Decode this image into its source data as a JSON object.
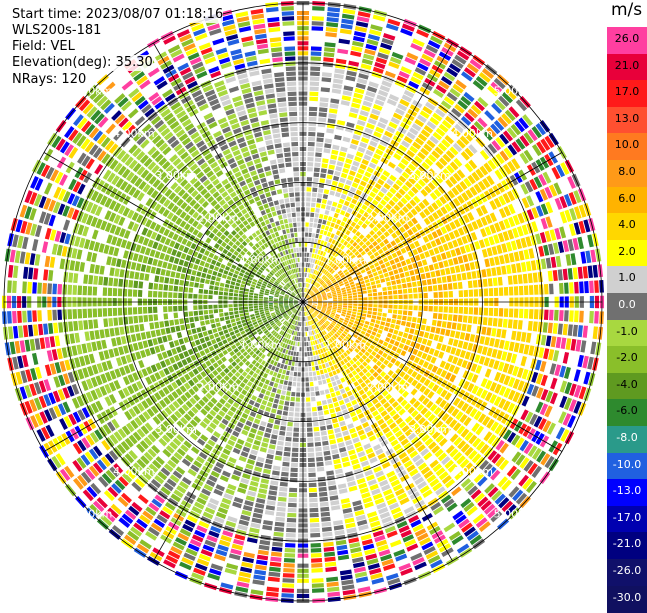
{
  "header": {
    "start_time": "Start time: 2023/08/07 01:18:16",
    "instrument": "WLS200s-181",
    "field": "Field: VEL",
    "elevation": "Elevation(deg): 35.30",
    "nrays": "NRays: 120"
  },
  "colorbar": {
    "unit": "m/s",
    "levels": [
      26.0,
      21.0,
      17.0,
      13.0,
      10.0,
      8.0,
      6.0,
      4.0,
      2.0,
      1.0,
      0.0,
      -1.0,
      -2.0,
      -4.0,
      -6.0,
      -8.0,
      -10.0,
      -13.0,
      -17.0,
      -21.0,
      -26.0,
      -30.0
    ],
    "labels": [
      "26.0",
      "21.0",
      "17.0",
      "13.0",
      "10.0",
      "8.0",
      "6.0",
      "4.0",
      "2.0",
      "1.0",
      "0.0",
      "-1.0",
      "-2.0",
      "-4.0",
      "-6.0",
      "-8.0",
      "-10.0",
      "-13.0",
      "-17.0",
      "-21.0",
      "-26.0",
      "-30.0"
    ],
    "colors": [
      "#ff3fa0",
      "#e8003a",
      "#ff1a1a",
      "#ff5030",
      "#ff7a20",
      "#ff9a18",
      "#ffb300",
      "#ffd700",
      "#ffff00",
      "#d0d0d0",
      "#707070",
      "#a8d840",
      "#8abf2a",
      "#5f9a20",
      "#2e8a2e",
      "#2a9a8a",
      "#2060e0",
      "#0000ff",
      "#0000b0",
      "#000080",
      "#10106a",
      "#101060"
    ]
  },
  "chart_data": {
    "type": "heatmap",
    "projection": "polar PPI",
    "field": "VEL",
    "units": "m/s",
    "nrays": 120,
    "elevation_deg": 35.3,
    "range_rings_km": [
      1.0,
      2.0,
      3.0,
      4.0,
      5.0
    ],
    "ring_labels": [
      "1.00km",
      "2.00km",
      "3.00km",
      "4.00km",
      "5.00km"
    ],
    "velocity_pattern": {
      "west_half": "negative (-1 to -6 m/s, green)",
      "east_half": "positive (1 to 6 m/s, yellow/orange)",
      "beyond_km": 4.0,
      "beyond_description": "noisy multicolored returns"
    }
  }
}
